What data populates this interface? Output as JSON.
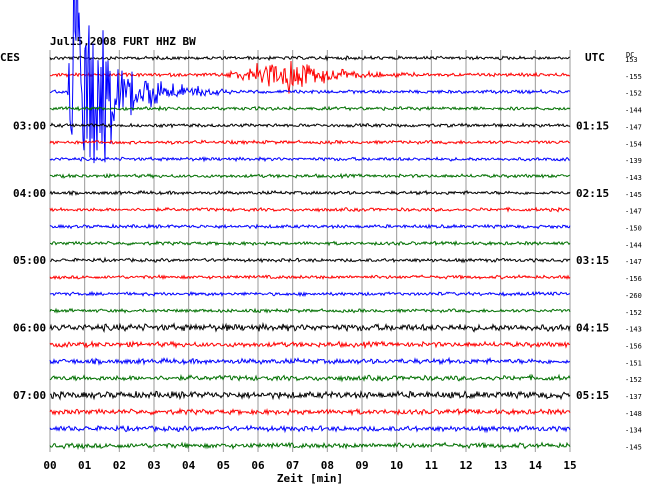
{
  "chart_data": {
    "type": "line",
    "title": "Jul15,2008  FURT HHZ BW",
    "xlabel": "Zeit [min]",
    "left_axis_label": "CES",
    "right_axis_label": "UTC",
    "dc_label": "DC",
    "x_ticks": [
      "00",
      "01",
      "02",
      "03",
      "04",
      "05",
      "06",
      "07",
      "08",
      "09",
      "10",
      "11",
      "12",
      "13",
      "14",
      "15"
    ],
    "xlim": [
      0,
      15
    ],
    "left_time_labels": [
      {
        "trace": 4,
        "label": "03:00"
      },
      {
        "trace": 8,
        "label": "04:00"
      },
      {
        "trace": 12,
        "label": "05:00"
      },
      {
        "trace": 16,
        "label": "06:00"
      },
      {
        "trace": 20,
        "label": "07:00"
      }
    ],
    "right_time_labels": [
      {
        "trace": 4,
        "label": "01:15"
      },
      {
        "trace": 8,
        "label": "02:15"
      },
      {
        "trace": 12,
        "label": "03:15"
      },
      {
        "trace": 16,
        "label": "04:15"
      },
      {
        "trace": 20,
        "label": "05:15"
      }
    ],
    "trace_colors": [
      "#000000",
      "#ff0000",
      "#0000ff",
      "#007000"
    ],
    "dc_offsets": [
      "153",
      "-155",
      "-152",
      "-144",
      "-147",
      "-154",
      "-139",
      "-143",
      "-145",
      "-147",
      "-150",
      "-144",
      "-147",
      "-156",
      "-260",
      "-152",
      "-143",
      "-156",
      "-151",
      "-152",
      "-137",
      "-148",
      "-134",
      "-145"
    ],
    "trace_amplitude": [
      2,
      2,
      2,
      2,
      2,
      2,
      2,
      2,
      2,
      2,
      2,
      2,
      2,
      2,
      2,
      2,
      4,
      3,
      3,
      3,
      4,
      3,
      3,
      3
    ],
    "events": [
      {
        "trace": 1,
        "start_min": 5.0,
        "peak_min": 7.0,
        "end_min": 10.5,
        "peak_amplitude": 22
      },
      {
        "trace": 2,
        "start_min": 0.5,
        "peak_min": 0.7,
        "end_min": 6.0,
        "peak_amplitude": 200
      }
    ]
  }
}
